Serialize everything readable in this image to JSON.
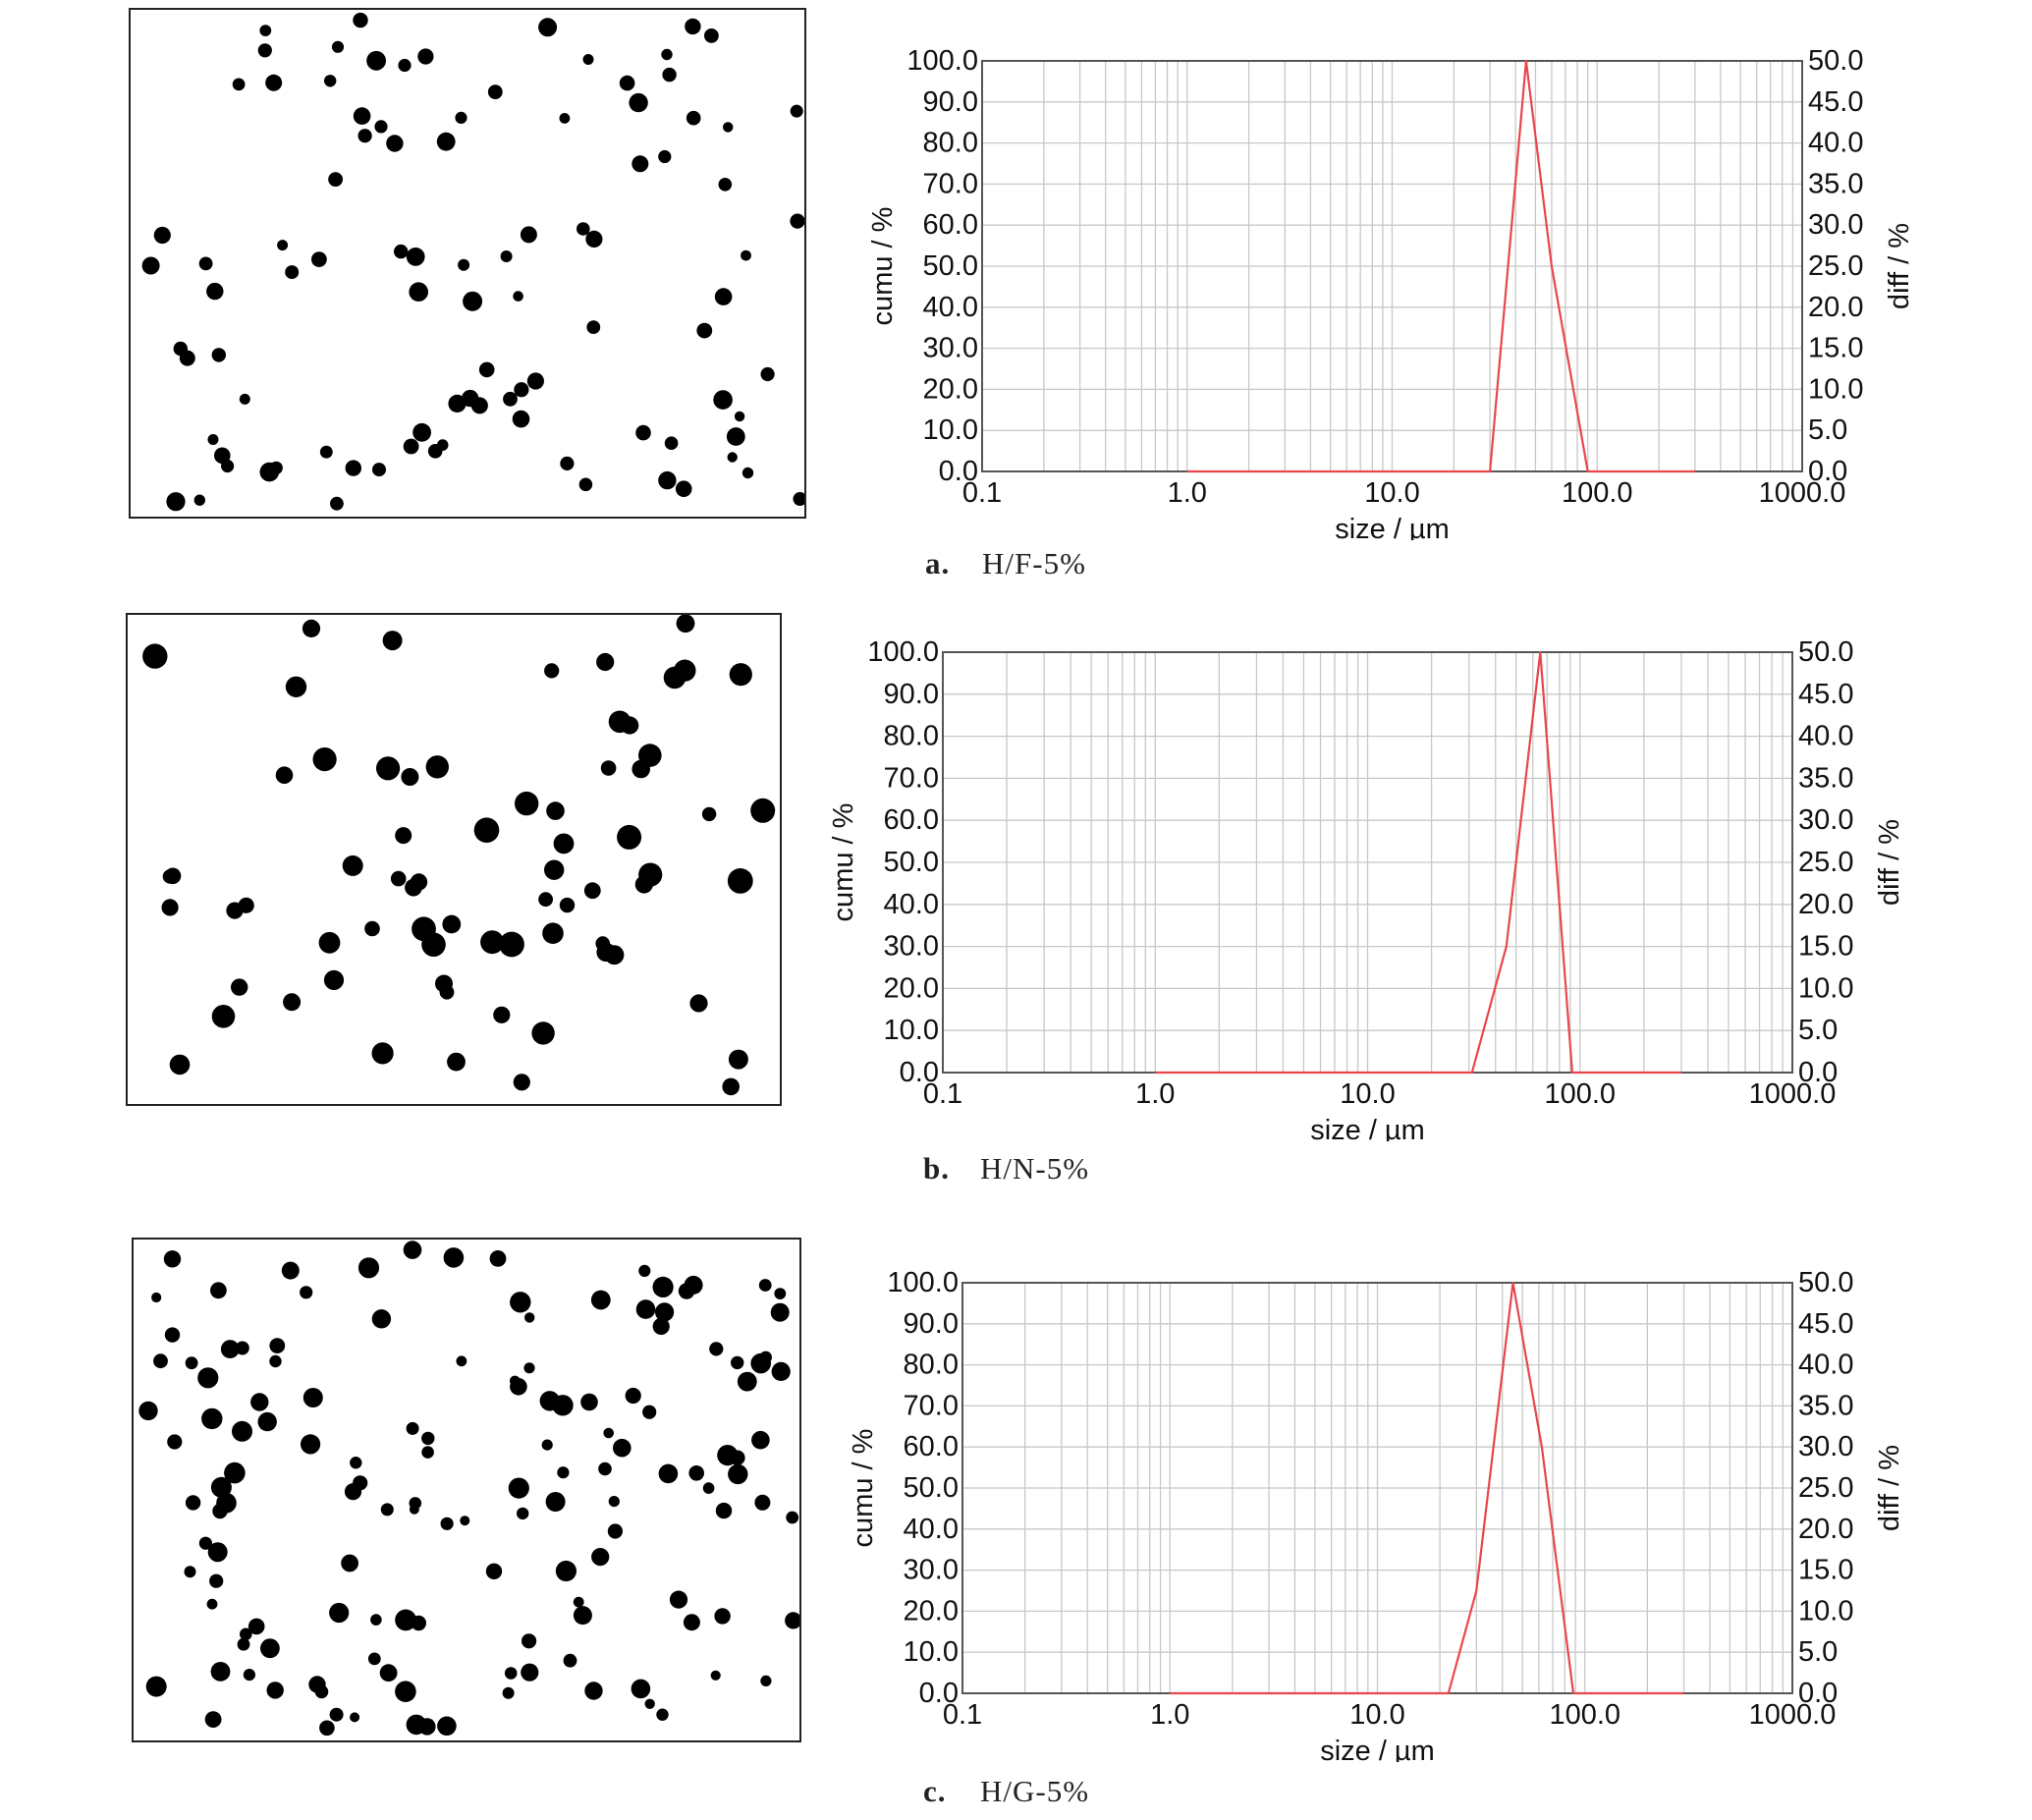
{
  "figure": {
    "panels": [
      {
        "id": "a",
        "letter": "a.",
        "label": "H/F-5%"
      },
      {
        "id": "b",
        "letter": "b.",
        "label": "H/N-5%"
      },
      {
        "id": "c",
        "letter": "c.",
        "label": "H/G-5%"
      }
    ]
  },
  "colors": {
    "curve": "#e8474c",
    "grid": "#c8c8c8",
    "frame": "#555555",
    "particle": "#000000"
  },
  "chart_data": [
    {
      "type": "line",
      "panel": "a",
      "title": "",
      "xlabel": "size / µm",
      "ylabel": "cumu / %",
      "y2label": "diff / %",
      "xscale": "log",
      "xlim": [
        0.1,
        1000.0
      ],
      "ylim": [
        0,
        100
      ],
      "y2lim": [
        0,
        50
      ],
      "xticks": [
        "0.1",
        "1.0",
        "10.0",
        "100.0",
        "1000.0"
      ],
      "yticks": [
        "0.0",
        "10.0",
        "20.0",
        "30.0",
        "40.0",
        "50.0",
        "60.0",
        "70.0",
        "80.0",
        "90.0",
        "100.0"
      ],
      "y2ticks": [
        "0.0",
        "5.0",
        "10.0",
        "15.0",
        "20.0",
        "25.0",
        "30.0",
        "35.0",
        "40.0",
        "45.0",
        "50.0"
      ],
      "grid": true,
      "series": [
        {
          "axis": "diff",
          "x": [
            1.0,
            30.0,
            45.0,
            60.0,
            90.0,
            300.0
          ],
          "y": [
            0.0,
            0.0,
            50.0,
            25.0,
            0.0,
            0.0
          ]
        }
      ]
    },
    {
      "type": "line",
      "panel": "b",
      "title": "",
      "xlabel": "size / µm",
      "ylabel": "cumu / %",
      "y2label": "diff / %",
      "xscale": "log",
      "xlim": [
        0.1,
        1000.0
      ],
      "ylim": [
        0,
        100
      ],
      "y2lim": [
        0,
        50
      ],
      "xticks": [
        "0.1",
        "1.0",
        "10.0",
        "100.0",
        "1000.0"
      ],
      "yticks": [
        "0.0",
        "10.0",
        "20.0",
        "30.0",
        "40.0",
        "50.0",
        "60.0",
        "70.0",
        "80.0",
        "90.0",
        "100.0"
      ],
      "y2ticks": [
        "0.0",
        "5.0",
        "10.0",
        "15.0",
        "20.0",
        "25.0",
        "30.0",
        "35.0",
        "40.0",
        "45.0",
        "50.0"
      ],
      "grid": true,
      "series": [
        {
          "axis": "diff",
          "x": [
            1.0,
            31.0,
            45.0,
            65.0,
            92.0,
            300.0
          ],
          "y": [
            0.0,
            0.0,
            15.0,
            50.0,
            0.0,
            0.0
          ]
        }
      ]
    },
    {
      "type": "line",
      "panel": "c",
      "title": "",
      "xlabel": "size / µm",
      "ylabel": "cumu / %",
      "y2label": "diff / %",
      "xscale": "log",
      "xlim": [
        0.1,
        1000.0
      ],
      "ylim": [
        0,
        100
      ],
      "y2lim": [
        0,
        50
      ],
      "xticks": [
        "0.1",
        "1.0",
        "10.0",
        "100.0",
        "1000.0"
      ],
      "yticks": [
        "0.0",
        "10.0",
        "20.0",
        "30.0",
        "40.0",
        "50.0",
        "60.0",
        "70.0",
        "80.0",
        "90.0",
        "100.0"
      ],
      "y2ticks": [
        "0.0",
        "5.0",
        "10.0",
        "15.0",
        "20.0",
        "25.0",
        "30.0",
        "35.0",
        "40.0",
        "45.0",
        "50.0"
      ],
      "grid": true,
      "series": [
        {
          "axis": "diff",
          "x": [
            1.0,
            22.0,
            30.0,
            45.0,
            62.0,
            88.0,
            300.0
          ],
          "y": [
            0.0,
            0.0,
            12.5,
            50.0,
            30.0,
            0.0,
            0.0
          ]
        }
      ]
    }
  ]
}
